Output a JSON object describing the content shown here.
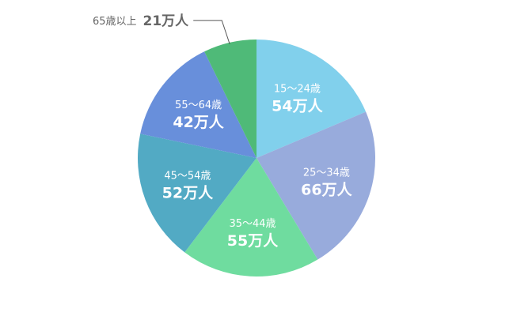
{
  "chart_data": {
    "type": "pie",
    "unit": "万人",
    "slices": [
      {
        "label": "15〜24歳",
        "value": 54,
        "value_label": "54万人",
        "color": "#81d0ec"
      },
      {
        "label": "25〜34歳",
        "value": 66,
        "value_label": "66万人",
        "color": "#98abdc"
      },
      {
        "label": "35〜44歳",
        "value": 55,
        "value_label": "55万人",
        "color": "#6fdc9f"
      },
      {
        "label": "45〜54歳",
        "value": 52,
        "value_label": "52万人",
        "color": "#52aac4"
      },
      {
        "label": "55〜64歳",
        "value": 42,
        "value_label": "42万人",
        "color": "#688fdb"
      },
      {
        "label": "65歳以上",
        "value": 21,
        "value_label": "21万人",
        "color": "#4fba78"
      }
    ],
    "start": "12 o'clock",
    "direction": "clockwise",
    "legend": "none"
  }
}
